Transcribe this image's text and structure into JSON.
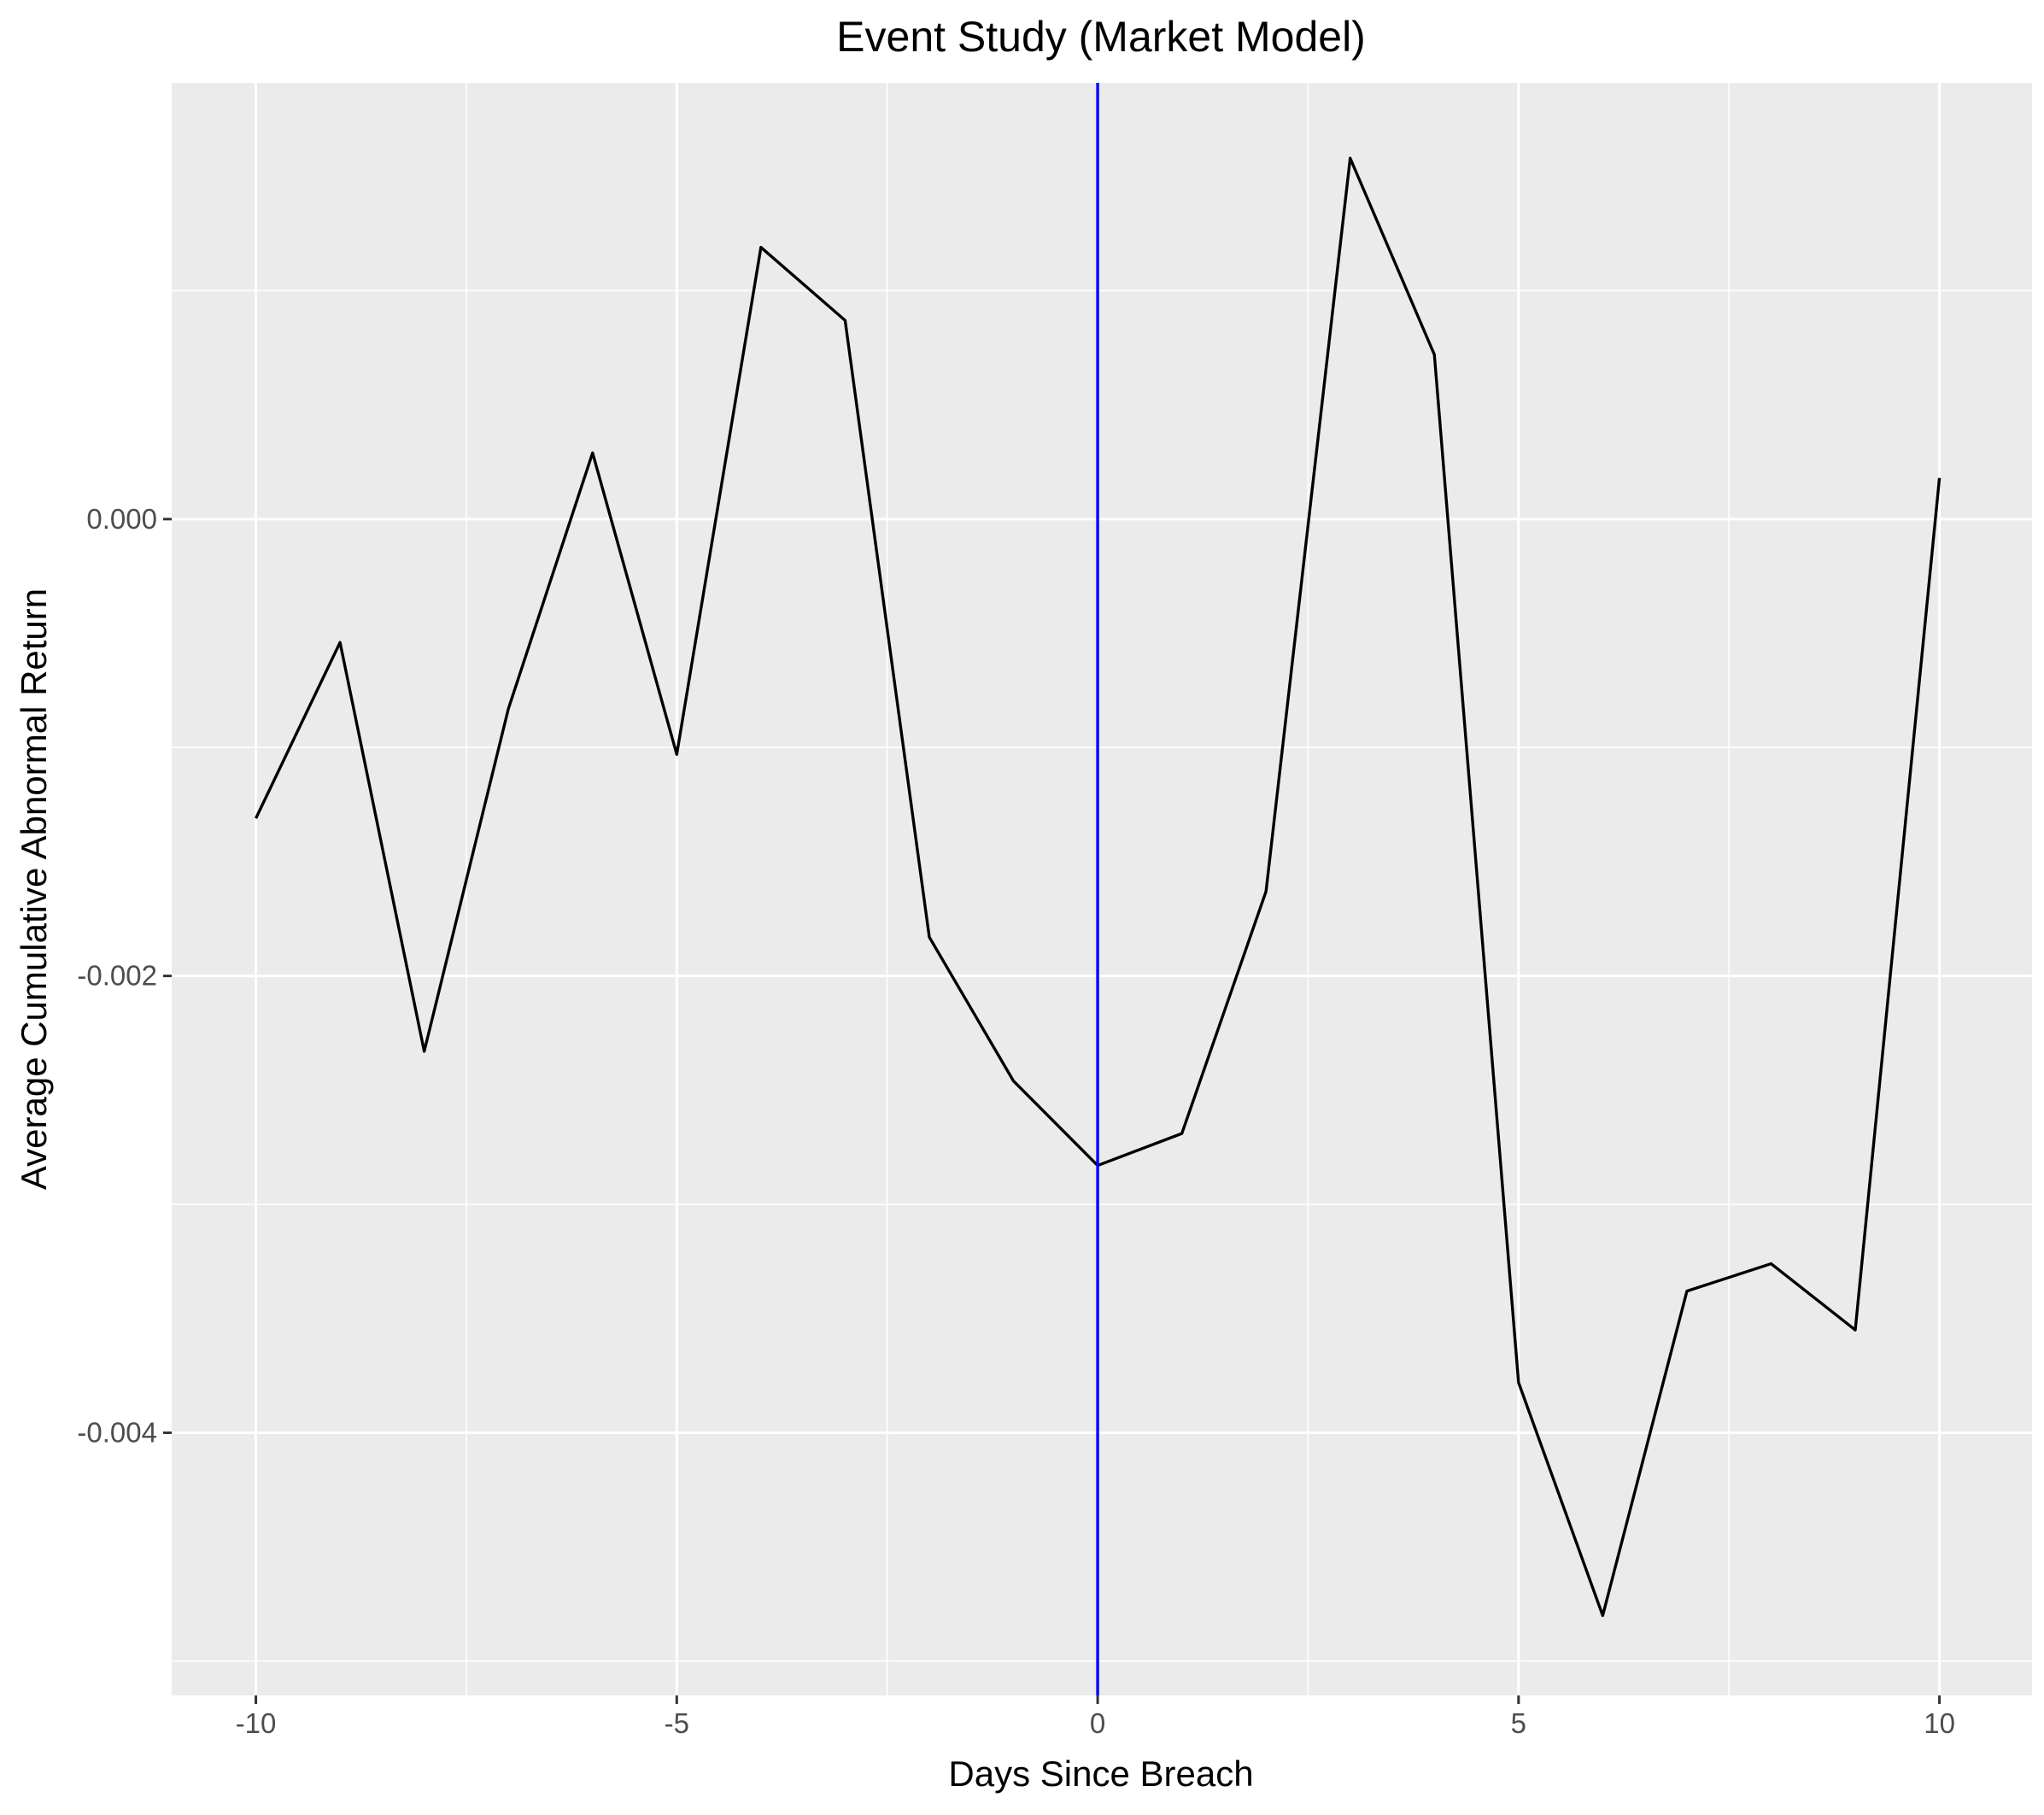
{
  "chart_data": {
    "type": "line",
    "title": "Event Study (Market Model)",
    "xlabel": "Days Since Breach",
    "ylabel": "Average Cumulative Abnormal Return",
    "xlim": [
      -11,
      11.1
    ],
    "ylim": [
      -0.00515,
      0.00191
    ],
    "x_ticks": [
      -10,
      -5,
      0,
      5,
      10
    ],
    "x_tick_labels": [
      "-10",
      "-5",
      "0",
      "5",
      "10"
    ],
    "y_ticks": [
      -0.004,
      -0.002,
      0.0
    ],
    "y_tick_labels": [
      "-0.004",
      "-0.002",
      "0.000"
    ],
    "grid": true,
    "vline": {
      "x": 0,
      "color": "#0000ff"
    },
    "series": [
      {
        "color": "#000000",
        "x": [
          -10,
          -9,
          -8,
          -7,
          -6,
          -5,
          -4,
          -3,
          -2,
          -1,
          0,
          1,
          2,
          3,
          4,
          5,
          6,
          7,
          8,
          9,
          10
        ],
        "values": [
          -0.00131,
          -0.00054,
          -0.00233,
          -0.00083,
          0.00029,
          -0.00103,
          0.00119,
          0.00087,
          -0.00183,
          -0.00246,
          -0.00283,
          -0.00269,
          -0.00163,
          0.00158,
          0.00072,
          -0.00378,
          -0.0048,
          -0.00338,
          -0.00326,
          -0.00355,
          0.00018
        ]
      }
    ]
  }
}
